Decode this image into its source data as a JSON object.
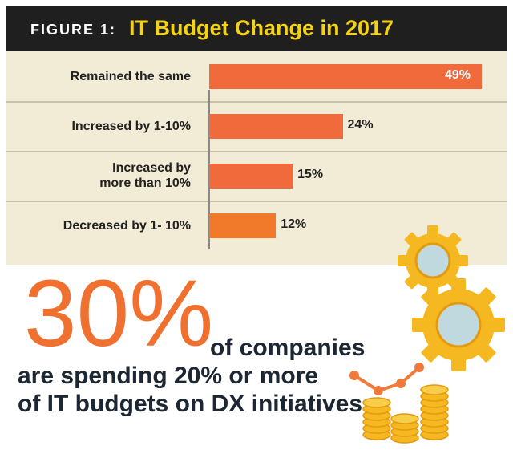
{
  "header": {
    "figure_label": "FIGURE 1:",
    "title": "IT Budget Change in 2017"
  },
  "chart_data": {
    "type": "bar",
    "orientation": "horizontal",
    "title": "IT Budget Change in 2017",
    "categories": [
      "Remained the same",
      "Increased by 1-10%",
      "Increased by more than 10%",
      "Decreased by 1- 10%"
    ],
    "category_lines": [
      [
        "Remained the same"
      ],
      [
        "Increased by 1-10%"
      ],
      [
        "Increased by",
        "more than 10%"
      ],
      [
        "Decreased by 1- 10%"
      ]
    ],
    "values": [
      49,
      24,
      15,
      12
    ],
    "value_labels": [
      "49%",
      "24%",
      "15%",
      "12%"
    ],
    "xlim": [
      0,
      50
    ],
    "unit": "%",
    "colors": [
      "#f06a3c",
      "#f06a3c",
      "#f06a3c",
      "#f07a2a"
    ]
  },
  "callout": {
    "big_number": "30%",
    "line1": "of companies",
    "line2": "are spending 20% or more",
    "line3": "of IT budgets on DX initiatives."
  },
  "colors": {
    "header_bg": "#1f1f1f",
    "title_yellow": "#f5d312",
    "panel_bg": "#f2ecd6",
    "bar": "#f06a3c",
    "accent_orange": "#f07030",
    "text_dark": "#1d2733",
    "gear_yellow": "#f5b820",
    "gear_center": "#bfd9df"
  }
}
